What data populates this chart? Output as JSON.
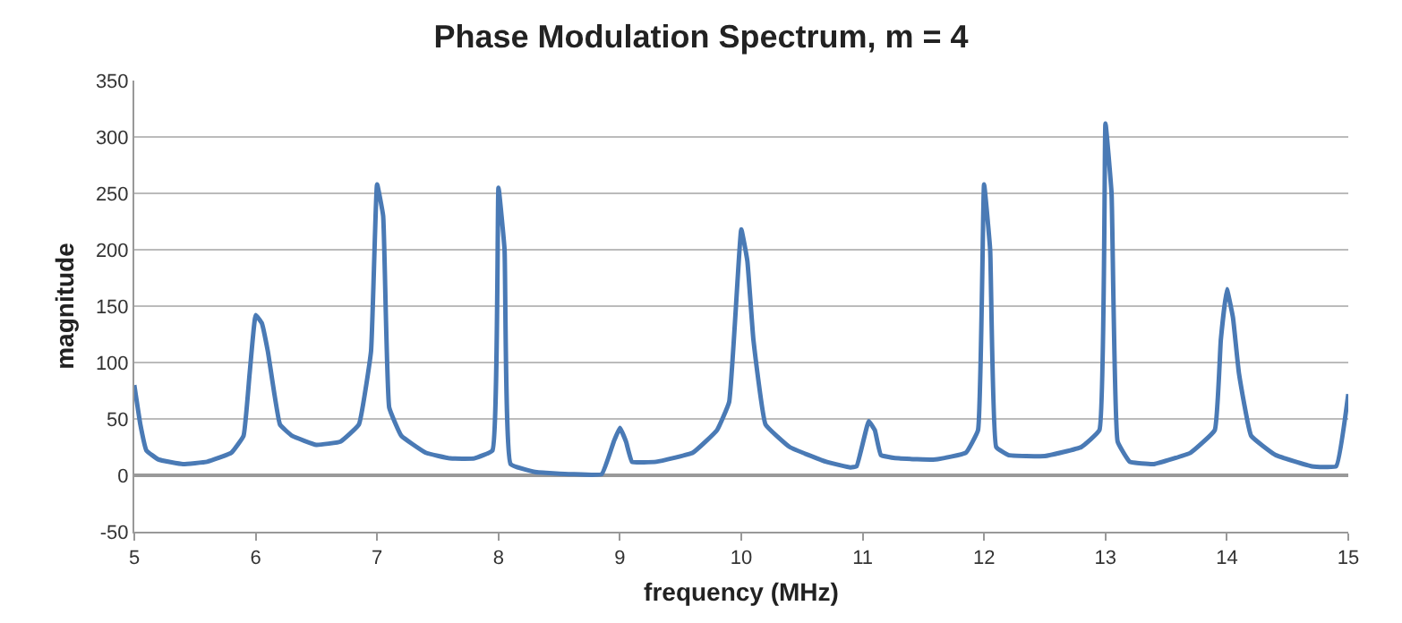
{
  "chart_data": {
    "type": "line",
    "title": "Phase Modulation Spectrum, m = 4",
    "xlabel": "frequency (MHz)",
    "ylabel": "magnitude",
    "x": [
      5,
      5.05,
      5.1,
      5.2,
      5.4,
      5.6,
      5.8,
      5.9,
      5.95,
      6.0,
      6.05,
      6.1,
      6.2,
      6.3,
      6.5,
      6.7,
      6.85,
      6.95,
      7.0,
      7.05,
      7.1,
      7.2,
      7.4,
      7.6,
      7.8,
      7.95,
      8.0,
      8.05,
      8.1,
      8.3,
      8.6,
      8.85,
      8.95,
      9.0,
      9.05,
      9.1,
      9.3,
      9.6,
      9.8,
      9.9,
      10.0,
      10.05,
      10.1,
      10.2,
      10.4,
      10.7,
      10.9,
      10.95,
      11.05,
      11.1,
      11.15,
      11.3,
      11.6,
      11.85,
      11.95,
      12.0,
      12.05,
      12.1,
      12.2,
      12.5,
      12.8,
      12.95,
      13.0,
      13.05,
      13.1,
      13.2,
      13.4,
      13.7,
      13.9,
      13.95,
      14.0,
      14.05,
      14.1,
      14.2,
      14.4,
      14.7,
      14.9,
      15.0
    ],
    "series": [
      {
        "color": "#4a7ab5",
        "values": [
          80,
          45,
          22,
          14,
          10,
          12,
          20,
          35,
          90,
          142,
          135,
          110,
          45,
          35,
          27,
          30,
          45,
          110,
          258,
          230,
          60,
          35,
          20,
          15,
          15,
          22,
          255,
          200,
          10,
          3,
          1,
          1,
          30,
          42,
          30,
          12,
          12,
          20,
          40,
          65,
          218,
          190,
          120,
          45,
          25,
          12,
          7,
          8,
          48,
          40,
          18,
          15,
          14,
          20,
          40,
          258,
          200,
          25,
          18,
          17,
          25,
          40,
          312,
          250,
          30,
          12,
          10,
          20,
          40,
          120,
          165,
          140,
          90,
          35,
          18,
          8,
          8,
          72
        ]
      }
    ],
    "xlim": [
      5,
      15
    ],
    "xticks": [
      5,
      6,
      7,
      8,
      9,
      10,
      11,
      12,
      13,
      14,
      15
    ],
    "ylim": [
      -50,
      350
    ],
    "yticks": [
      -50,
      0,
      50,
      100,
      150,
      200,
      250,
      300,
      350
    ],
    "grid": "y",
    "marker": "none",
    "line_style": "solid"
  }
}
